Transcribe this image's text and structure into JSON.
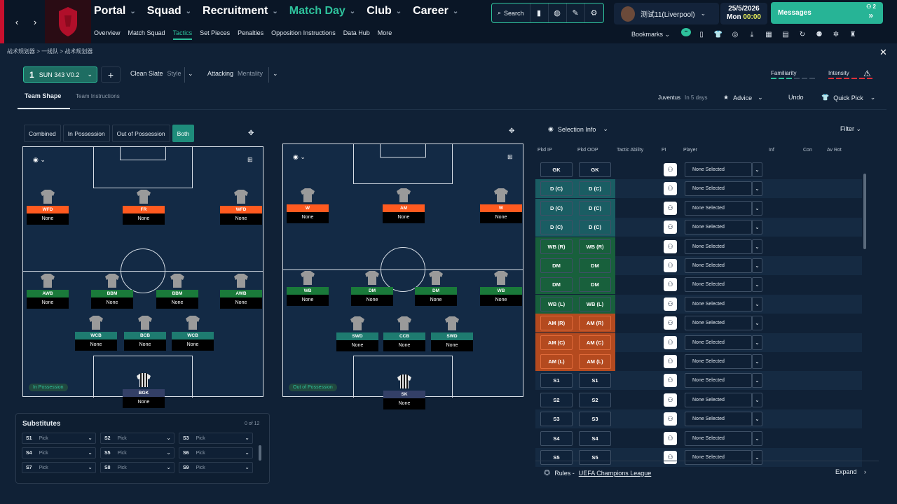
{
  "header": {
    "nav": [
      {
        "label": "Portal",
        "active": false
      },
      {
        "label": "Squad",
        "active": false
      },
      {
        "label": "Recruitment",
        "active": false
      },
      {
        "label": "Match Day",
        "active": true
      },
      {
        "label": "Club",
        "active": false
      },
      {
        "label": "Career",
        "active": false
      }
    ],
    "subnav": [
      "Overview",
      "Match Squad",
      "Tactics",
      "Set Pieces",
      "Penalties",
      "Opposition Instructions",
      "Data Hub",
      "More"
    ],
    "subnav_active": "Tactics",
    "search_label": "Search",
    "manager_name": "测试11(Liverpool)",
    "date": "25/5/2026",
    "day": "Mon",
    "time": "00:00",
    "messages_label": "Messages",
    "messages_count": "2",
    "bookmarks_label": "Bookmarks",
    "bookmark_badge": "••",
    "accent": "#2ec29c",
    "club_color": "#c8102e"
  },
  "breadcrumb": [
    "战术规划器",
    "一线队",
    "战术规划器"
  ],
  "tactic": {
    "number": "1",
    "name": "SUN 343 V0.2",
    "style_value": "Clean Slate",
    "style_label": "Style",
    "mentality_value": "Attacking",
    "mentality_label": "Mentality",
    "familiarity_label": "Familiarity",
    "intensity_label": "Intensity"
  },
  "tabs": {
    "team_shape": "Team Shape",
    "team_instructions": "Team Instructions",
    "opponent": "Juventus",
    "opponent_when": "In 5 days",
    "advice": "Advice",
    "undo": "Undo",
    "quick_pick": "Quick Pick"
  },
  "view_toggles": [
    "Combined",
    "In Possession",
    "Out of Possession",
    "Both"
  ],
  "view_active": "Both",
  "in_possession": {
    "label": "In Possession",
    "players": [
      {
        "pos": "WFD",
        "name": "None",
        "color": "#ff5a1f"
      },
      {
        "pos": "FR",
        "name": "None",
        "color": "#ff5a1f"
      },
      {
        "pos": "WFD",
        "name": "None",
        "color": "#ff5a1f"
      },
      {
        "pos": "AWB",
        "name": "None",
        "color": "#1a7a3a"
      },
      {
        "pos": "BBM",
        "name": "None",
        "color": "#1a7a3a"
      },
      {
        "pos": "BBM",
        "name": "None",
        "color": "#1a7a3a"
      },
      {
        "pos": "AWB",
        "name": "None",
        "color": "#1a7a3a"
      },
      {
        "pos": "WCB",
        "name": "None",
        "color": "#1e7b70"
      },
      {
        "pos": "BCB",
        "name": "None",
        "color": "#1e7b70"
      },
      {
        "pos": "WCB",
        "name": "None",
        "color": "#1e7b70"
      },
      {
        "pos": "BGK",
        "name": "None",
        "color": "#333f66"
      }
    ]
  },
  "out_of_possession": {
    "label": "Out of Possession",
    "players": [
      {
        "pos": "W",
        "name": "None",
        "color": "#ff5a1f"
      },
      {
        "pos": "AM",
        "name": "None",
        "color": "#ff5a1f"
      },
      {
        "pos": "W",
        "name": "None",
        "color": "#ff5a1f"
      },
      {
        "pos": "WB",
        "name": "None",
        "color": "#1a7a3a"
      },
      {
        "pos": "DM",
        "name": "None",
        "color": "#1a7a3a"
      },
      {
        "pos": "DM",
        "name": "None",
        "color": "#1a7a3a"
      },
      {
        "pos": "WB",
        "name": "None",
        "color": "#1a7a3a"
      },
      {
        "pos": "SWD",
        "name": "None",
        "color": "#1e7b70"
      },
      {
        "pos": "CCB",
        "name": "None",
        "color": "#1e7b70"
      },
      {
        "pos": "SWD",
        "name": "None",
        "color": "#1e7b70"
      },
      {
        "pos": "SK",
        "name": "None",
        "color": "#333f66"
      }
    ]
  },
  "substitutes": {
    "title": "Substitutes",
    "count": "0 of 12",
    "slots": [
      {
        "id": "S1",
        "value": "Pick"
      },
      {
        "id": "S2",
        "value": "Pick"
      },
      {
        "id": "S3",
        "value": "Pick"
      },
      {
        "id": "S4",
        "value": "Pick"
      },
      {
        "id": "S5",
        "value": "Pick"
      },
      {
        "id": "S6",
        "value": "Pick"
      },
      {
        "id": "S7",
        "value": "Pick"
      },
      {
        "id": "S8",
        "value": "Pick"
      },
      {
        "id": "S9",
        "value": "Pick"
      }
    ]
  },
  "selection": {
    "info_label": "Selection Info",
    "filter_label": "Filter",
    "columns": [
      "Pkd IP",
      "Pkd OOP",
      "Tactic Ability",
      "PI",
      "Player",
      "Inf",
      "Con",
      "Av Rot"
    ],
    "player_placeholder": "None Selected",
    "rows": [
      {
        "ip": "GK",
        "oop": "GK",
        "group": "gk"
      },
      {
        "ip": "D (C)",
        "oop": "D (C)",
        "group": "def"
      },
      {
        "ip": "D (C)",
        "oop": "D (C)",
        "group": "def"
      },
      {
        "ip": "D (C)",
        "oop": "D (C)",
        "group": "def"
      },
      {
        "ip": "WB (R)",
        "oop": "WB (R)",
        "group": "mid"
      },
      {
        "ip": "DM",
        "oop": "DM",
        "group": "mid"
      },
      {
        "ip": "DM",
        "oop": "DM",
        "group": "mid"
      },
      {
        "ip": "WB (L)",
        "oop": "WB (L)",
        "group": "mid"
      },
      {
        "ip": "AM (R)",
        "oop": "AM (R)",
        "group": "att"
      },
      {
        "ip": "AM (C)",
        "oop": "AM (C)",
        "group": "att"
      },
      {
        "ip": "AM (L)",
        "oop": "AM (L)",
        "group": "att"
      },
      {
        "ip": "S1",
        "oop": "S1",
        "group": "sub"
      },
      {
        "ip": "S2",
        "oop": "S2",
        "group": "sub"
      },
      {
        "ip": "S3",
        "oop": "S3",
        "group": "sub"
      },
      {
        "ip": "S4",
        "oop": "S4",
        "group": "sub"
      },
      {
        "ip": "S5",
        "oop": "S5",
        "group": "sub"
      }
    ],
    "group_colors": {
      "gk": "#10233a",
      "def": "#1a5d63",
      "mid": "#18603c",
      "att": "#b44a1f",
      "sub": "#10233a"
    }
  },
  "rules": {
    "prefix": "Rules -",
    "competition": "UEFA Champions League",
    "expand": "Expand"
  }
}
